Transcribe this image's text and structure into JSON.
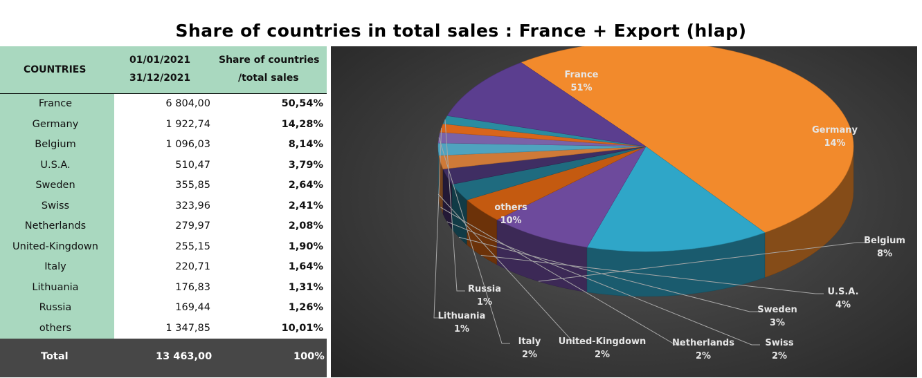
{
  "title": "Share of countries in total sales : France + Export (hlap)",
  "table": {
    "header": {
      "countries": "COUNTRIES",
      "date_from": "01/01/2021",
      "date_to": "31/12/2021",
      "share_line1": "Share of countries",
      "share_line2": "/total sales"
    },
    "rows": [
      {
        "country": "France",
        "value": "6 804,00",
        "share": "50,54%"
      },
      {
        "country": "Germany",
        "value": "1 922,74",
        "share": "14,28%"
      },
      {
        "country": "Belgium",
        "value": "1 096,03",
        "share": "8,14%"
      },
      {
        "country": "U.S.A.",
        "value": "510,47",
        "share": "3,79%"
      },
      {
        "country": "Sweden",
        "value": "355,85",
        "share": "2,64%"
      },
      {
        "country": "Swiss",
        "value": "323,96",
        "share": "2,41%"
      },
      {
        "country": "Netherlands",
        "value": "279,97",
        "share": "2,08%"
      },
      {
        "country": "United-Kingdown",
        "value": "255,15",
        "share": "1,90%"
      },
      {
        "country": "Italy",
        "value": "220,71",
        "share": "1,64%"
      },
      {
        "country": "Lithuania",
        "value": "176,83",
        "share": "1,31%"
      },
      {
        "country": "Russia",
        "value": "169,44",
        "share": "1,26%"
      },
      {
        "country": "others",
        "value": "1 347,85",
        "share": "10,01%"
      }
    ],
    "total": {
      "label": "Total",
      "value": "13 463,00",
      "share": "100%"
    }
  },
  "chart_data": {
    "type": "pie",
    "title": "",
    "labels": [
      "France",
      "Germany",
      "Belgium",
      "U.S.A.",
      "Sweden",
      "Swiss",
      "Netherlands",
      "United-Kingdown",
      "Italy",
      "Lithuania",
      "Russia",
      "others"
    ],
    "values": [
      6804.0,
      1922.74,
      1096.03,
      510.47,
      355.85,
      323.96,
      279.97,
      255.15,
      220.71,
      176.83,
      169.44,
      1347.85
    ],
    "percent_labels": [
      "51%",
      "14%",
      "8%",
      "4%",
      "3%",
      "2%",
      "2%",
      "2%",
      "2%",
      "1%",
      "1%",
      "10%"
    ],
    "colors": [
      "#f28a2c",
      "#2fa6c8",
      "#6d4a9c",
      "#c45a10",
      "#1f6b7f",
      "#3f2e63",
      "#cf7a38",
      "#4fa3bf",
      "#7a62a8",
      "#d9651a",
      "#2a8ca0",
      "#5b3e8f"
    ],
    "style": "3d"
  }
}
